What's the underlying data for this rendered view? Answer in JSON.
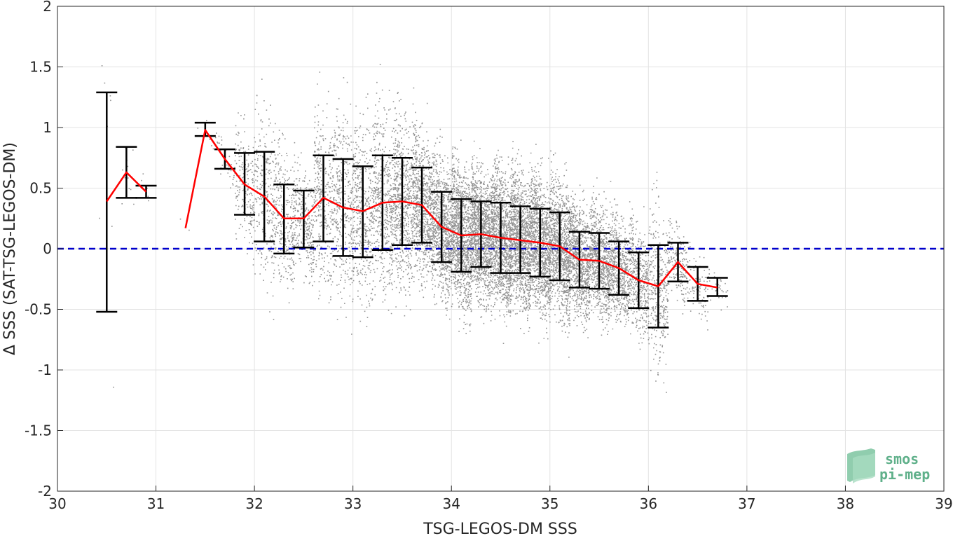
{
  "chart_data": {
    "type": "scatter",
    "xlabel": "TSG-LEGOS-DM SSS",
    "ylabel": "Δ SSS (SAT-TSG-LEGOS-DM)",
    "xlim": [
      30,
      39
    ],
    "ylim": [
      -2,
      2
    ],
    "x_ticks": [
      30,
      31,
      32,
      33,
      34,
      35,
      36,
      37,
      38,
      39
    ],
    "y_ticks": [
      2,
      1.5,
      1,
      0.5,
      0,
      -0.5,
      -1,
      -1.5,
      -2
    ],
    "grid": true,
    "reference_line": {
      "y": 0,
      "style": "dashed",
      "color": "#0000cc"
    },
    "scatter_color": "#808080",
    "mean_line_color": "#ff0000",
    "errorbar_color": "#000000",
    "series": [
      {
        "kind": "binned-mean-with-std",
        "bins": [
          {
            "x": 30.5,
            "mean": 0.39,
            "low": -0.52,
            "high": 1.29
          },
          {
            "x": 30.7,
            "mean": 0.63,
            "low": 0.42,
            "high": 0.84
          },
          {
            "x": 30.9,
            "mean": 0.47,
            "low": 0.42,
            "high": 0.52
          },
          {
            "x": 31.3,
            "mean": 0.17,
            "low": 0.17,
            "high": 0.17
          },
          {
            "x": 31.5,
            "mean": 0.98,
            "low": 0.93,
            "high": 1.04
          },
          {
            "x": 31.7,
            "mean": 0.74,
            "low": 0.66,
            "high": 0.82
          },
          {
            "x": 31.9,
            "mean": 0.53,
            "low": 0.28,
            "high": 0.79
          },
          {
            "x": 32.1,
            "mean": 0.43,
            "low": 0.06,
            "high": 0.8
          },
          {
            "x": 32.3,
            "mean": 0.25,
            "low": -0.04,
            "high": 0.53
          },
          {
            "x": 32.5,
            "mean": 0.25,
            "low": 0.01,
            "high": 0.48
          },
          {
            "x": 32.7,
            "mean": 0.42,
            "low": 0.06,
            "high": 0.77
          },
          {
            "x": 32.9,
            "mean": 0.34,
            "low": -0.06,
            "high": 0.74
          },
          {
            "x": 33.1,
            "mean": 0.31,
            "low": -0.07,
            "high": 0.68
          },
          {
            "x": 33.3,
            "mean": 0.38,
            "low": -0.01,
            "high": 0.77
          },
          {
            "x": 33.5,
            "mean": 0.39,
            "low": 0.03,
            "high": 0.75
          },
          {
            "x": 33.7,
            "mean": 0.36,
            "low": 0.05,
            "high": 0.67
          },
          {
            "x": 33.9,
            "mean": 0.18,
            "low": -0.11,
            "high": 0.47
          },
          {
            "x": 34.1,
            "mean": 0.11,
            "low": -0.19,
            "high": 0.41
          },
          {
            "x": 34.3,
            "mean": 0.12,
            "low": -0.15,
            "high": 0.39
          },
          {
            "x": 34.5,
            "mean": 0.09,
            "low": -0.2,
            "high": 0.38
          },
          {
            "x": 34.7,
            "mean": 0.07,
            "low": -0.2,
            "high": 0.35
          },
          {
            "x": 34.9,
            "mean": 0.05,
            "low": -0.23,
            "high": 0.33
          },
          {
            "x": 35.1,
            "mean": 0.02,
            "low": -0.26,
            "high": 0.3
          },
          {
            "x": 35.3,
            "mean": -0.09,
            "low": -0.32,
            "high": 0.14
          },
          {
            "x": 35.5,
            "mean": -0.1,
            "low": -0.33,
            "high": 0.13
          },
          {
            "x": 35.7,
            "mean": -0.16,
            "low": -0.38,
            "high": 0.06
          },
          {
            "x": 35.9,
            "mean": -0.26,
            "low": -0.49,
            "high": -0.03
          },
          {
            "x": 36.1,
            "mean": -0.31,
            "low": -0.65,
            "high": 0.03
          },
          {
            "x": 36.3,
            "mean": -0.11,
            "low": -0.27,
            "high": 0.05
          },
          {
            "x": 36.5,
            "mean": -0.29,
            "low": -0.43,
            "high": -0.15
          },
          {
            "x": 36.7,
            "mean": -0.32,
            "low": -0.39,
            "high": -0.24
          }
        ]
      }
    ]
  },
  "logo": {
    "line1": "smos",
    "line2": "pi-mep",
    "color": "#5fb08a"
  }
}
